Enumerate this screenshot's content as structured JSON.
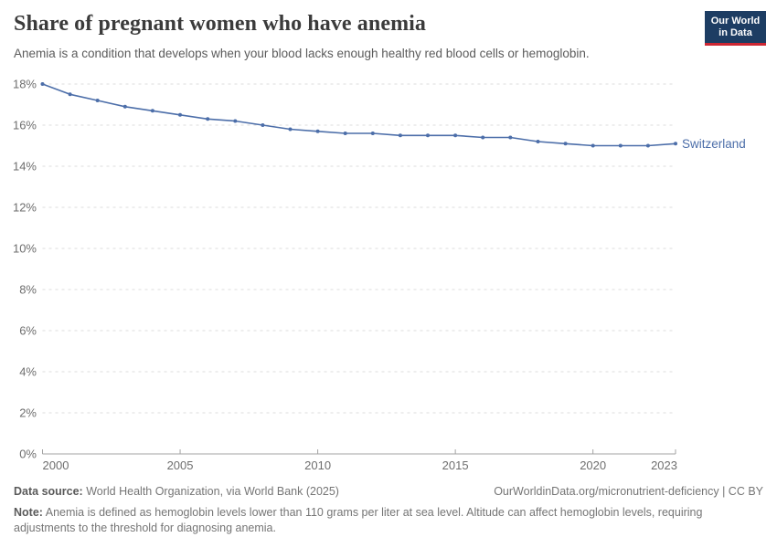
{
  "header": {
    "title": "Share of pregnant women who have anemia",
    "subtitle": "Anemia is a condition that develops when your blood lacks enough healthy red blood cells or hemoglobin.",
    "logo": {
      "line1": "Our World",
      "line2": "in Data",
      "bg": "#1d3d63",
      "stripe": "#cd2733"
    }
  },
  "chart_data": {
    "type": "line",
    "title": "Share of pregnant women who have anemia",
    "x": [
      2000,
      2001,
      2002,
      2003,
      2004,
      2005,
      2006,
      2007,
      2008,
      2009,
      2010,
      2011,
      2012,
      2013,
      2014,
      2015,
      2016,
      2017,
      2018,
      2019,
      2020,
      2021,
      2022,
      2023
    ],
    "series": [
      {
        "name": "Switzerland",
        "color": "#4C6EA9",
        "values": [
          18.0,
          17.5,
          17.2,
          16.9,
          16.7,
          16.5,
          16.3,
          16.2,
          16.0,
          15.8,
          15.7,
          15.6,
          15.6,
          15.5,
          15.5,
          15.5,
          15.4,
          15.4,
          15.2,
          15.1,
          15.0,
          15.0,
          15.0,
          15.1
        ]
      }
    ],
    "xlabel": "",
    "ylabel": "",
    "ylim": [
      0,
      18
    ],
    "ytick_step": 2,
    "ytick_suffix": "%",
    "xticks": [
      2000,
      2005,
      2010,
      2015,
      2020,
      2023
    ],
    "grid": "dashed-horizontal",
    "legend_position": "end-of-line",
    "colors": {
      "grid": "#dcdcdc",
      "axis_line": "#a3a3a3",
      "axis_text": "#6e6e6e"
    }
  },
  "footer": {
    "source_label": "Data source:",
    "source_text": "World Health Organization, via World Bank (2025)",
    "link_text": "OurWorldinData.org/micronutrient-deficiency | CC BY",
    "note_label": "Note:",
    "note_text": "Anemia is defined as hemoglobin levels lower than 110 grams per liter at sea level. Altitude can affect hemoglobin levels, requiring adjustments to the threshold for diagnosing anemia."
  }
}
